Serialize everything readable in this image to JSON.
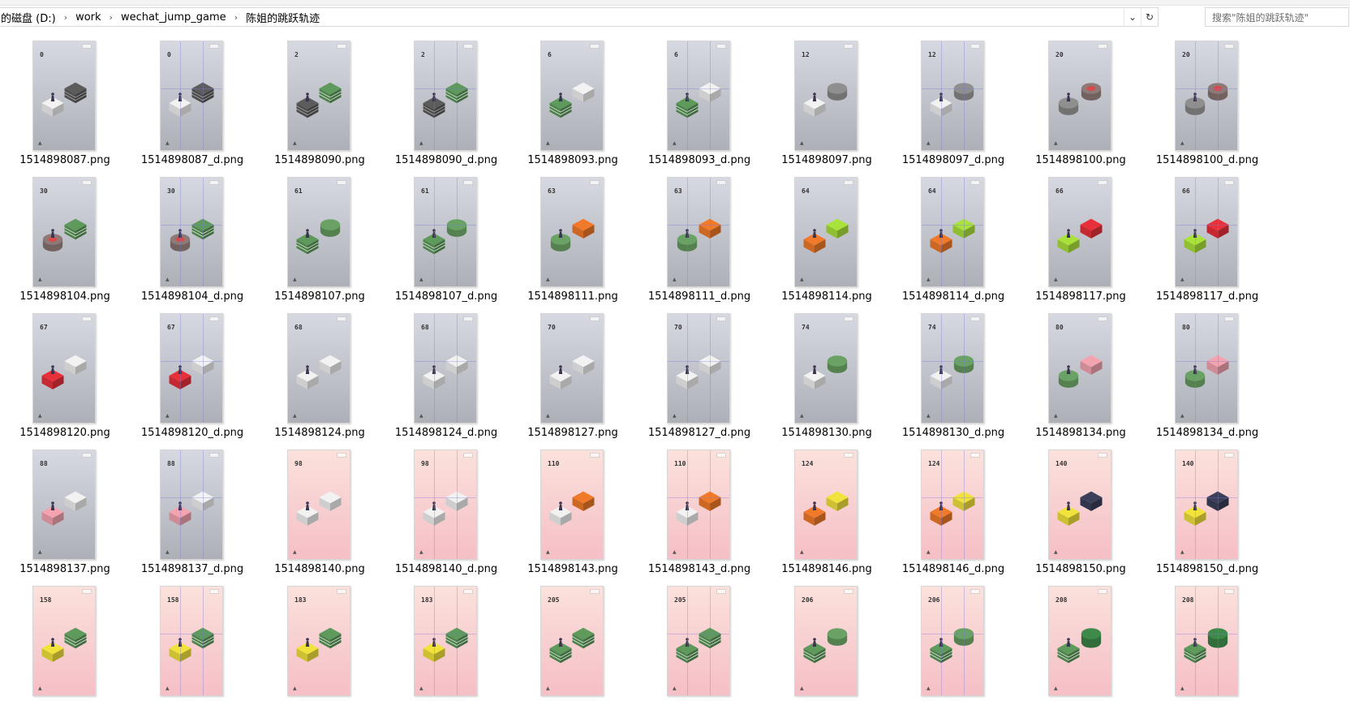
{
  "breadcrumb": [
    "的磁盘 (D:)",
    "work",
    "wechat_jump_game",
    "陈姐的跳跃轨迹"
  ],
  "search": {
    "placeholder": "搜索\"陈姐的跳跃轨迹\""
  },
  "icons": {
    "separator": "chevron-right-icon",
    "dropdown": "chevron-down-icon",
    "refresh": "refresh-icon"
  },
  "files": [
    {
      "name": "1514898087.png",
      "score": "0",
      "theme": "gray",
      "debug": false,
      "blocks": [
        "gray-stack",
        "white"
      ]
    },
    {
      "name": "1514898087_d.png",
      "score": "0",
      "theme": "gray",
      "debug": true,
      "blocks": [
        "gray-stack",
        "white"
      ]
    },
    {
      "name": "1514898090.png",
      "score": "2",
      "theme": "gray",
      "debug": false,
      "blocks": [
        "green",
        "gray-stack"
      ]
    },
    {
      "name": "1514898090_d.png",
      "score": "2",
      "theme": "gray",
      "debug": true,
      "blocks": [
        "green",
        "gray-stack"
      ]
    },
    {
      "name": "1514898093.png",
      "score": "6",
      "theme": "gray",
      "debug": false,
      "blocks": [
        "white",
        "green"
      ]
    },
    {
      "name": "1514898093_d.png",
      "score": "6",
      "theme": "gray",
      "debug": true,
      "blocks": [
        "white",
        "green"
      ]
    },
    {
      "name": "1514898097.png",
      "score": "12",
      "theme": "gray",
      "debug": false,
      "blocks": [
        "disc",
        "white"
      ]
    },
    {
      "name": "1514898097_d.png",
      "score": "12",
      "theme": "gray",
      "debug": true,
      "blocks": [
        "disc",
        "white"
      ]
    },
    {
      "name": "1514898100.png",
      "score": "20",
      "theme": "gray",
      "debug": false,
      "blocks": [
        "disc-red",
        "disc"
      ]
    },
    {
      "name": "1514898100_d.png",
      "score": "20",
      "theme": "gray",
      "debug": true,
      "blocks": [
        "disc-red",
        "disc"
      ]
    },
    {
      "name": "1514898104.png",
      "score": "30",
      "theme": "gray",
      "debug": false,
      "blocks": [
        "green",
        "disc-red"
      ]
    },
    {
      "name": "1514898104_d.png",
      "score": "30",
      "theme": "gray",
      "debug": true,
      "blocks": [
        "green",
        "disc-red"
      ]
    },
    {
      "name": "1514898107.png",
      "score": "61",
      "theme": "gray",
      "debug": false,
      "blocks": [
        "green-round",
        "green"
      ]
    },
    {
      "name": "1514898107_d.png",
      "score": "61",
      "theme": "gray",
      "debug": true,
      "blocks": [
        "green-round",
        "green"
      ]
    },
    {
      "name": "1514898111.png",
      "score": "63",
      "theme": "gray",
      "debug": false,
      "blocks": [
        "orange",
        "green-round"
      ]
    },
    {
      "name": "1514898111_d.png",
      "score": "63",
      "theme": "gray",
      "debug": true,
      "blocks": [
        "orange",
        "green-round"
      ]
    },
    {
      "name": "1514898114.png",
      "score": "64",
      "theme": "gray",
      "debug": false,
      "blocks": [
        "lime",
        "orange"
      ]
    },
    {
      "name": "1514898114_d.png",
      "score": "64",
      "theme": "gray",
      "debug": true,
      "blocks": [
        "lime",
        "orange"
      ]
    },
    {
      "name": "1514898117.png",
      "score": "66",
      "theme": "gray",
      "debug": false,
      "blocks": [
        "red",
        "lime"
      ]
    },
    {
      "name": "1514898117_d.png",
      "score": "66",
      "theme": "gray",
      "debug": true,
      "blocks": [
        "red",
        "lime"
      ]
    },
    {
      "name": "1514898120.png",
      "score": "67",
      "theme": "gray",
      "debug": false,
      "blocks": [
        "white",
        "red"
      ]
    },
    {
      "name": "1514898120_d.png",
      "score": "67",
      "theme": "gray",
      "debug": true,
      "blocks": [
        "white",
        "red"
      ]
    },
    {
      "name": "1514898124.png",
      "score": "68",
      "theme": "gray",
      "debug": false,
      "blocks": [
        "white",
        "white"
      ]
    },
    {
      "name": "1514898124_d.png",
      "score": "68",
      "theme": "gray",
      "debug": true,
      "blocks": [
        "white",
        "white"
      ]
    },
    {
      "name": "1514898127.png",
      "score": "70",
      "theme": "gray",
      "debug": false,
      "blocks": [
        "white",
        "white"
      ]
    },
    {
      "name": "1514898127_d.png",
      "score": "70",
      "theme": "gray",
      "debug": true,
      "blocks": [
        "white",
        "white"
      ]
    },
    {
      "name": "1514898130.png",
      "score": "74",
      "theme": "gray",
      "debug": false,
      "blocks": [
        "green-round",
        "white"
      ]
    },
    {
      "name": "1514898130_d.png",
      "score": "74",
      "theme": "gray",
      "debug": true,
      "blocks": [
        "green-round",
        "white"
      ]
    },
    {
      "name": "1514898134.png",
      "score": "80",
      "theme": "gray",
      "debug": false,
      "blocks": [
        "pink",
        "green-round"
      ]
    },
    {
      "name": "1514898134_d.png",
      "score": "80",
      "theme": "gray",
      "debug": true,
      "blocks": [
        "pink",
        "green-round"
      ]
    },
    {
      "name": "1514898137.png",
      "score": "88",
      "theme": "gray",
      "debug": false,
      "blocks": [
        "white",
        "pink"
      ]
    },
    {
      "name": "1514898137_d.png",
      "score": "88",
      "theme": "gray",
      "debug": true,
      "blocks": [
        "white",
        "pink"
      ]
    },
    {
      "name": "1514898140.png",
      "score": "98",
      "theme": "pink",
      "debug": false,
      "blocks": [
        "white",
        "white"
      ]
    },
    {
      "name": "1514898140_d.png",
      "score": "98",
      "theme": "pink",
      "debug": true,
      "blocks": [
        "white",
        "white"
      ]
    },
    {
      "name": "1514898143.png",
      "score": "110",
      "theme": "pink",
      "debug": false,
      "blocks": [
        "orange",
        "white"
      ]
    },
    {
      "name": "1514898143_d.png",
      "score": "110",
      "theme": "pink",
      "debug": true,
      "blocks": [
        "orange",
        "white"
      ]
    },
    {
      "name": "1514898146.png",
      "score": "124",
      "theme": "pink",
      "debug": false,
      "blocks": [
        "yellow",
        "orange"
      ]
    },
    {
      "name": "1514898146_d.png",
      "score": "124",
      "theme": "pink",
      "debug": true,
      "blocks": [
        "yellow",
        "orange"
      ]
    },
    {
      "name": "1514898150.png",
      "score": "140",
      "theme": "pink",
      "debug": false,
      "blocks": [
        "navy",
        "yellow"
      ]
    },
    {
      "name": "1514898150_d.png",
      "score": "140",
      "theme": "pink",
      "debug": true,
      "blocks": [
        "navy",
        "yellow"
      ]
    },
    {
      "name": "",
      "score": "158",
      "theme": "pink",
      "debug": false,
      "blocks": [
        "green",
        "yellow"
      ]
    },
    {
      "name": "",
      "score": "158",
      "theme": "pink",
      "debug": true,
      "blocks": [
        "green",
        "yellow"
      ]
    },
    {
      "name": "",
      "score": "183",
      "theme": "pink",
      "debug": false,
      "blocks": [
        "green",
        "yellow"
      ]
    },
    {
      "name": "",
      "score": "183",
      "theme": "pink",
      "debug": true,
      "blocks": [
        "green",
        "yellow"
      ]
    },
    {
      "name": "",
      "score": "205",
      "theme": "pink",
      "debug": false,
      "blocks": [
        "green",
        "green"
      ]
    },
    {
      "name": "",
      "score": "205",
      "theme": "pink",
      "debug": true,
      "blocks": [
        "green",
        "green"
      ]
    },
    {
      "name": "",
      "score": "206",
      "theme": "pink",
      "debug": false,
      "blocks": [
        "green-round",
        "green"
      ]
    },
    {
      "name": "",
      "score": "206",
      "theme": "pink",
      "debug": true,
      "blocks": [
        "green-round",
        "green"
      ]
    },
    {
      "name": "",
      "score": "208",
      "theme": "pink",
      "debug": false,
      "blocks": [
        "green-cyl",
        "green"
      ]
    },
    {
      "name": "",
      "score": "208",
      "theme": "pink",
      "debug": true,
      "blocks": [
        "green-cyl",
        "green"
      ]
    }
  ],
  "colors": {
    "gray_bg_top": "#d7d9e2",
    "gray_bg_bottom": "#aeb0b8",
    "pink_bg_top": "#fbe1dc",
    "pink_bg_bottom": "#f5bfc6",
    "blocks": {
      "white": "#f2f2f2",
      "gray-stack": "#5c5c5c",
      "green": "#5d9a5b",
      "green-round": "#6aa165",
      "green-cyl": "#3f8a4a",
      "disc": "#8f8f8f",
      "disc-red": "#8d7a78",
      "orange": "#f07a2a",
      "lime": "#a9e23b",
      "red": "#e8303a",
      "pink": "#f4a4b0",
      "yellow": "#f2e23c",
      "navy": "#3b3f5a"
    }
  }
}
